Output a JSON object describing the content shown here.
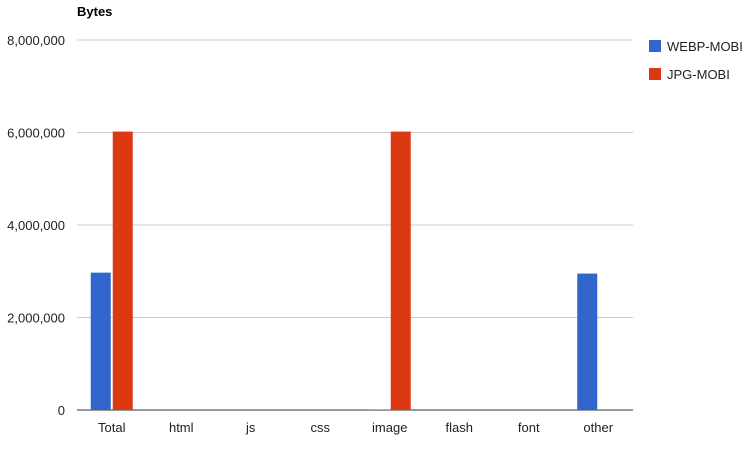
{
  "chart_data": {
    "type": "bar",
    "title": "Bytes",
    "xlabel": "",
    "ylabel": "",
    "categories": [
      "Total",
      "html",
      "js",
      "css",
      "image",
      "flash",
      "font",
      "other"
    ],
    "series": [
      {
        "name": "WEBP-MOBI",
        "color": "#3366cc",
        "values": [
          2970000,
          0,
          0,
          0,
          10000,
          0,
          0,
          2950000
        ]
      },
      {
        "name": "JPG-MOBI",
        "color": "#dc3912",
        "values": [
          6020000,
          0,
          0,
          0,
          6020000,
          0,
          0,
          0
        ]
      }
    ],
    "ylim": [
      0,
      8000000
    ],
    "yticks": [
      "0",
      "2,000,000",
      "4,000,000",
      "6,000,000",
      "8,000,000"
    ],
    "ytick_values": [
      0,
      2000000,
      4000000,
      6000000,
      8000000
    ],
    "grid": true,
    "legend_position": "right"
  }
}
